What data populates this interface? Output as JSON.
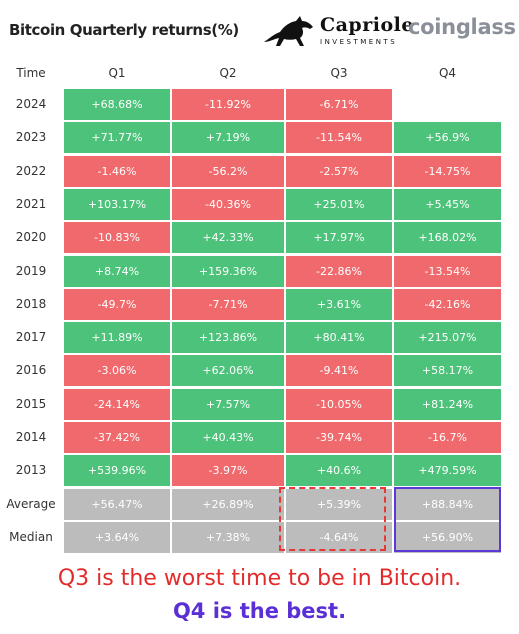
{
  "header": {
    "title": "Bitcoin Quarterly returns(%)",
    "brand_name": "Capriole",
    "brand_sub": "INVESTMENTS",
    "coinglass": "coinglass"
  },
  "chart_data": {
    "type": "table",
    "title": "Bitcoin Quarterly returns(%)",
    "columns": [
      "Time",
      "Q1",
      "Q2",
      "Q3",
      "Q4"
    ],
    "rows": [
      {
        "label": "2024",
        "values": [
          "+68.68%",
          "-11.92%",
          "-6.71%",
          ""
        ],
        "colors": [
          "pos",
          "neg",
          "neg",
          "empty"
        ]
      },
      {
        "label": "2023",
        "values": [
          "+71.77%",
          "+7.19%",
          "-11.54%",
          "+56.9%"
        ],
        "colors": [
          "pos",
          "pos",
          "neg",
          "pos"
        ]
      },
      {
        "label": "2022",
        "values": [
          "-1.46%",
          "-56.2%",
          "-2.57%",
          "-14.75%"
        ],
        "colors": [
          "neg",
          "neg",
          "neg",
          "neg"
        ]
      },
      {
        "label": "2021",
        "values": [
          "+103.17%",
          "-40.36%",
          "+25.01%",
          "+5.45%"
        ],
        "colors": [
          "pos",
          "neg",
          "pos",
          "pos"
        ]
      },
      {
        "label": "2020",
        "values": [
          "-10.83%",
          "+42.33%",
          "+17.97%",
          "+168.02%"
        ],
        "colors": [
          "neg",
          "pos",
          "pos",
          "pos"
        ]
      },
      {
        "label": "2019",
        "values": [
          "+8.74%",
          "+159.36%",
          "-22.86%",
          "-13.54%"
        ],
        "colors": [
          "pos",
          "pos",
          "neg",
          "neg"
        ]
      },
      {
        "label": "2018",
        "values": [
          "-49.7%",
          "-7.71%",
          "+3.61%",
          "-42.16%"
        ],
        "colors": [
          "neg",
          "neg",
          "pos",
          "neg"
        ]
      },
      {
        "label": "2017",
        "values": [
          "+11.89%",
          "+123.86%",
          "+80.41%",
          "+215.07%"
        ],
        "colors": [
          "pos",
          "pos",
          "pos",
          "pos"
        ]
      },
      {
        "label": "2016",
        "values": [
          "-3.06%",
          "+62.06%",
          "-9.41%",
          "+58.17%"
        ],
        "colors": [
          "neg",
          "pos",
          "neg",
          "pos"
        ]
      },
      {
        "label": "2015",
        "values": [
          "-24.14%",
          "+7.57%",
          "-10.05%",
          "+81.24%"
        ],
        "colors": [
          "neg",
          "pos",
          "neg",
          "pos"
        ]
      },
      {
        "label": "2014",
        "values": [
          "-37.42%",
          "+40.43%",
          "-39.74%",
          "-16.7%"
        ],
        "colors": [
          "neg",
          "pos",
          "neg",
          "neg"
        ]
      },
      {
        "label": "2013",
        "values": [
          "+539.96%",
          "-3.97%",
          "+40.6%",
          "+479.59%"
        ],
        "colors": [
          "pos",
          "neg",
          "pos",
          "pos"
        ]
      },
      {
        "label": "Average",
        "values": [
          "+56.47%",
          "+26.89%",
          "+5.39%",
          "+88.84%"
        ],
        "colors": [
          "neutral",
          "neutral",
          "neutral",
          "neutral"
        ]
      },
      {
        "label": "Median",
        "values": [
          "+3.64%",
          "+7.38%",
          "-4.64%",
          "+56.90%"
        ],
        "colors": [
          "neutral",
          "neutral",
          "neutral",
          "neutral"
        ]
      }
    ],
    "colors": {
      "pos": "#4dc27a",
      "neg": "#f06a6d",
      "neutral": "#bcbcbc",
      "worst_highlight": "#e53935",
      "best_highlight": "#5b39d6"
    }
  },
  "notes": {
    "line1": "Q3 is the worst time to be in Bitcoin.",
    "line2": "Q4 is the best."
  }
}
